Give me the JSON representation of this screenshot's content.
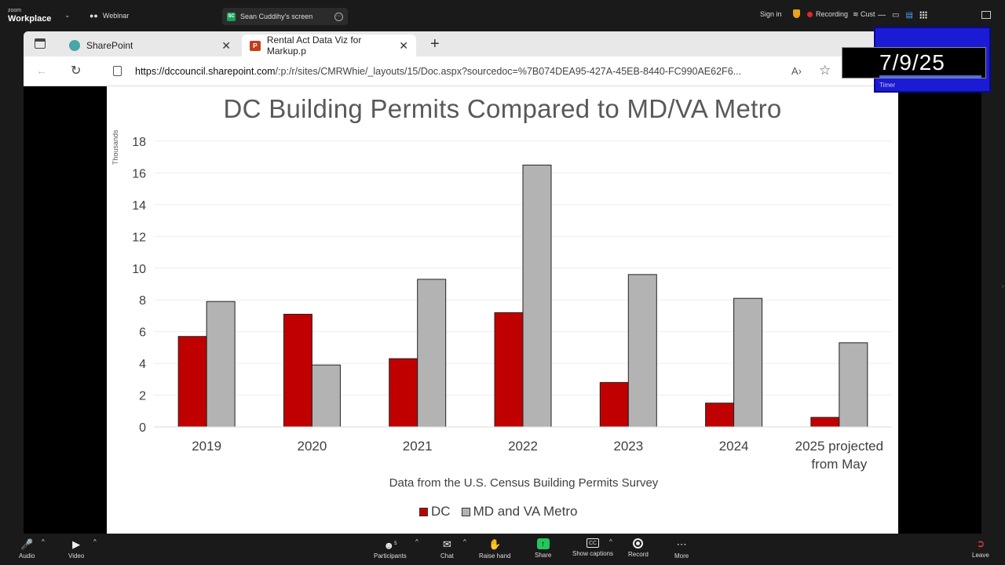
{
  "zoom_top": {
    "logo_line1": "zoom",
    "logo_line2": "Workplace",
    "webinar": "Webinar",
    "screen_badge": "SC",
    "screen_title": "Sean Cuddihy's screen",
    "sign_in": "Sign in",
    "recording": "Recording",
    "cust": "Cust"
  },
  "browser": {
    "tabs": [
      {
        "label": "SharePoint"
      },
      {
        "label": "Rental Act Data Viz for Markup.p"
      }
    ],
    "ppt_badge": "P",
    "url_host": "https://dccouncil.sharepoint.com",
    "url_path": "/:p:/r/sites/CMRWhie/_layouts/15/Doc.aspx?sourcedoc=%7B074DEA95-427A-45EB-8440-FC990AE62F6..."
  },
  "slide": {
    "title": "DC Building Permits Compared to MD/VA Metro",
    "note": "Data from the U.S. Census Building Permits Survey"
  },
  "chart_data": {
    "type": "bar",
    "title": "DC Building Permits Compared to MD/VA Metro",
    "ylabel": "Thousands",
    "xlabel": "",
    "categories": [
      "2019",
      "2020",
      "2021",
      "2022",
      "2023",
      "2024",
      "2025 projected from May"
    ],
    "category_lines": [
      [
        "2019"
      ],
      [
        "2020"
      ],
      [
        "2021"
      ],
      [
        "2022"
      ],
      [
        "2023"
      ],
      [
        "2024"
      ],
      [
        "2025 projected",
        "from May"
      ]
    ],
    "series": [
      {
        "name": "DC",
        "color": "#c00000",
        "values": [
          5.7,
          7.1,
          4.3,
          7.2,
          2.8,
          1.5,
          0.6
        ]
      },
      {
        "name": "MD and VA Metro",
        "color": "#b3b3b3",
        "values": [
          7.9,
          3.9,
          9.3,
          16.5,
          9.6,
          8.1,
          5.3
        ]
      }
    ],
    "ylim": [
      0,
      18
    ],
    "yticks": [
      0,
      2,
      4,
      6,
      8,
      10,
      12,
      14,
      16,
      18
    ],
    "grid": true,
    "legend": "bottom"
  },
  "timer": {
    "date": "7/9/25",
    "label": "Timer"
  },
  "zoom_bottom": {
    "audio": "Audio",
    "video": "Video",
    "participants": "Participants",
    "participants_count": "5",
    "chat": "Chat",
    "raise_hand": "Raise hand",
    "share": "Share",
    "captions": "Show captions",
    "captions_badge": "CC",
    "record": "Record",
    "more": "More",
    "leave": "Leave"
  }
}
